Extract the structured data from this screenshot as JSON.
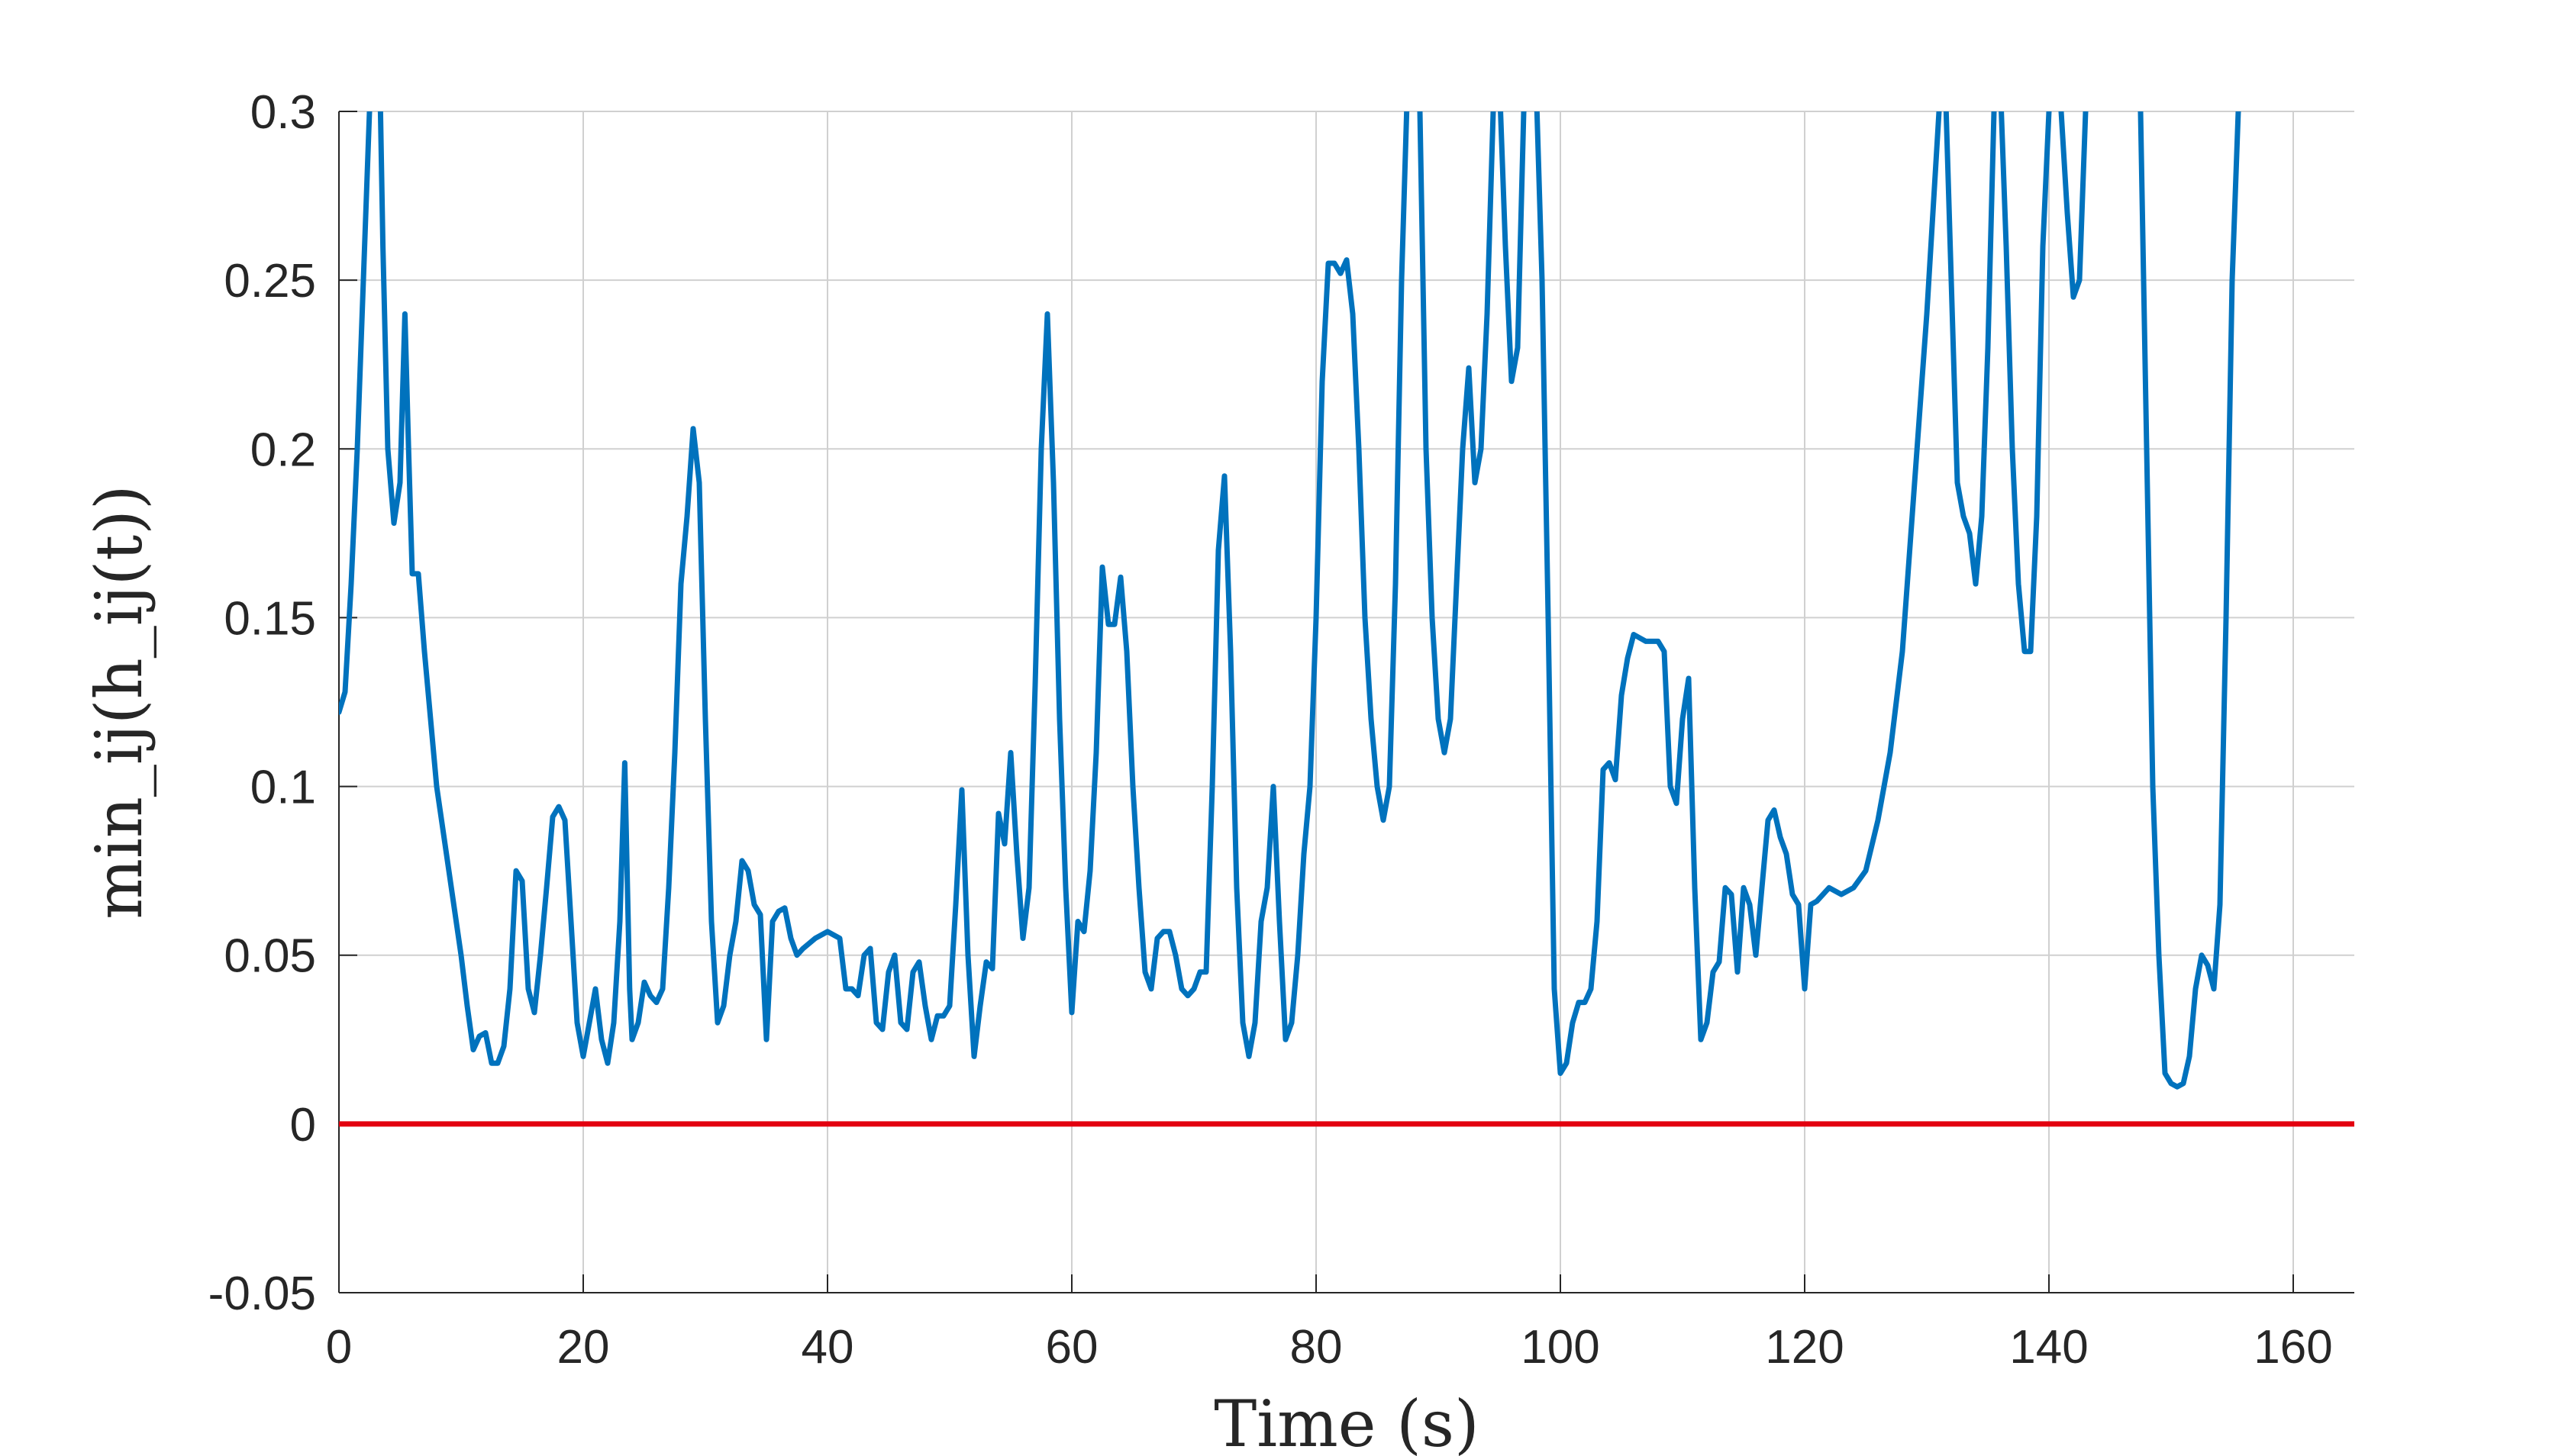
{
  "chart_data": {
    "type": "line",
    "title": "",
    "xlabel": "Time (s)",
    "ylabel": "min_ij(h_ij(t))",
    "xlim": [
      0,
      165
    ],
    "ylim": [
      -0.05,
      0.3
    ],
    "x_ticks": [
      0,
      20,
      40,
      60,
      80,
      100,
      120,
      140,
      160
    ],
    "x_tick_labels": [
      "0",
      "20",
      "40",
      "60",
      "80",
      "100",
      "120",
      "140",
      "160"
    ],
    "y_ticks": [
      -0.05,
      0,
      0.05,
      0.1,
      0.15,
      0.2,
      0.25,
      0.3
    ],
    "y_tick_labels": [
      "-0.05",
      "0",
      "0.05",
      "0.1",
      "0.15",
      "0.2",
      "0.25",
      "0.3"
    ],
    "grid": true,
    "series": [
      {
        "color": "#0072BD",
        "points": [
          [
            0,
            0.122
          ],
          [
            0.5,
            0.128
          ],
          [
            1,
            0.16
          ],
          [
            1.5,
            0.2
          ],
          [
            2,
            0.25
          ],
          [
            2.5,
            0.3
          ],
          [
            3,
            0.31
          ],
          [
            3.4,
            0.3
          ],
          [
            3.6,
            0.26
          ],
          [
            4,
            0.2
          ],
          [
            4.5,
            0.178
          ],
          [
            5,
            0.19
          ],
          [
            5.4,
            0.24
          ],
          [
            5.7,
            0.2
          ],
          [
            6,
            0.163
          ],
          [
            6.5,
            0.163
          ],
          [
            7,
            0.14
          ],
          [
            8,
            0.1
          ],
          [
            9,
            0.075
          ],
          [
            10,
            0.05
          ],
          [
            10.5,
            0.035
          ],
          [
            11,
            0.022
          ],
          [
            11.5,
            0.026
          ],
          [
            12,
            0.027
          ],
          [
            12.5,
            0.018
          ],
          [
            13,
            0.018
          ],
          [
            13.5,
            0.023
          ],
          [
            14,
            0.04
          ],
          [
            14.5,
            0.075
          ],
          [
            15,
            0.072
          ],
          [
            15.5,
            0.04
          ],
          [
            16,
            0.033
          ],
          [
            16.5,
            0.05
          ],
          [
            17,
            0.07
          ],
          [
            17.5,
            0.091
          ],
          [
            18,
            0.094
          ],
          [
            18.5,
            0.09
          ],
          [
            19,
            0.06
          ],
          [
            19.5,
            0.03
          ],
          [
            20,
            0.02
          ],
          [
            20.5,
            0.03
          ],
          [
            21,
            0.04
          ],
          [
            21.5,
            0.025
          ],
          [
            22,
            0.018
          ],
          [
            22.5,
            0.03
          ],
          [
            23,
            0.06
          ],
          [
            23.4,
            0.107
          ],
          [
            23.8,
            0.04
          ],
          [
            24,
            0.025
          ],
          [
            24.5,
            0.03
          ],
          [
            25,
            0.042
          ],
          [
            25.5,
            0.038
          ],
          [
            26,
            0.036
          ],
          [
            26.5,
            0.04
          ],
          [
            27,
            0.07
          ],
          [
            27.5,
            0.11
          ],
          [
            28,
            0.16
          ],
          [
            28.5,
            0.18
          ],
          [
            29,
            0.206
          ],
          [
            29.5,
            0.19
          ],
          [
            30,
            0.12
          ],
          [
            30.5,
            0.06
          ],
          [
            31,
            0.03
          ],
          [
            31.5,
            0.035
          ],
          [
            32,
            0.05
          ],
          [
            32.5,
            0.06
          ],
          [
            33,
            0.078
          ],
          [
            33.5,
            0.075
          ],
          [
            34,
            0.065
          ],
          [
            34.5,
            0.062
          ],
          [
            35,
            0.025
          ],
          [
            35.5,
            0.06
          ],
          [
            36,
            0.063
          ],
          [
            36.5,
            0.064
          ],
          [
            37,
            0.055
          ],
          [
            37.5,
            0.05
          ],
          [
            38,
            0.052
          ],
          [
            39,
            0.055
          ],
          [
            40,
            0.057
          ],
          [
            41,
            0.055
          ],
          [
            41.5,
            0.04
          ],
          [
            42,
            0.04
          ],
          [
            42.5,
            0.038
          ],
          [
            43,
            0.05
          ],
          [
            43.5,
            0.052
          ],
          [
            44,
            0.03
          ],
          [
            44.5,
            0.028
          ],
          [
            45,
            0.045
          ],
          [
            45.5,
            0.05
          ],
          [
            46,
            0.03
          ],
          [
            46.5,
            0.028
          ],
          [
            47,
            0.045
          ],
          [
            47.5,
            0.048
          ],
          [
            48,
            0.035
          ],
          [
            48.5,
            0.025
          ],
          [
            49,
            0.032
          ],
          [
            49.5,
            0.032
          ],
          [
            50,
            0.035
          ],
          [
            50.5,
            0.065
          ],
          [
            51,
            0.099
          ],
          [
            51.5,
            0.05
          ],
          [
            52,
            0.02
          ],
          [
            52.5,
            0.035
          ],
          [
            53,
            0.048
          ],
          [
            53.5,
            0.046
          ],
          [
            54,
            0.092
          ],
          [
            54.5,
            0.083
          ],
          [
            55,
            0.11
          ],
          [
            55.5,
            0.08
          ],
          [
            56,
            0.055
          ],
          [
            56.5,
            0.07
          ],
          [
            57,
            0.13
          ],
          [
            57.5,
            0.2
          ],
          [
            58,
            0.24
          ],
          [
            58.5,
            0.19
          ],
          [
            59,
            0.12
          ],
          [
            59.5,
            0.07
          ],
          [
            60,
            0.033
          ],
          [
            60.5,
            0.06
          ],
          [
            61,
            0.057
          ],
          [
            61.5,
            0.075
          ],
          [
            62,
            0.11
          ],
          [
            62.5,
            0.165
          ],
          [
            63,
            0.148
          ],
          [
            63.5,
            0.148
          ],
          [
            64,
            0.162
          ],
          [
            64.5,
            0.14
          ],
          [
            65,
            0.1
          ],
          [
            65.5,
            0.07
          ],
          [
            66,
            0.045
          ],
          [
            66.5,
            0.04
          ],
          [
            67,
            0.055
          ],
          [
            67.5,
            0.057
          ],
          [
            68,
            0.057
          ],
          [
            68.5,
            0.05
          ],
          [
            69,
            0.04
          ],
          [
            69.5,
            0.038
          ],
          [
            70,
            0.04
          ],
          [
            70.5,
            0.045
          ],
          [
            71,
            0.045
          ],
          [
            71.5,
            0.1
          ],
          [
            72,
            0.17
          ],
          [
            72.5,
            0.192
          ],
          [
            73,
            0.14
          ],
          [
            73.5,
            0.07
          ],
          [
            74,
            0.03
          ],
          [
            74.5,
            0.02
          ],
          [
            75,
            0.03
          ],
          [
            75.5,
            0.06
          ],
          [
            76,
            0.07
          ],
          [
            76.5,
            0.1
          ],
          [
            77,
            0.06
          ],
          [
            77.5,
            0.025
          ],
          [
            78,
            0.03
          ],
          [
            78.5,
            0.05
          ],
          [
            79,
            0.08
          ],
          [
            79.5,
            0.1
          ],
          [
            80,
            0.15
          ],
          [
            80.5,
            0.22
          ],
          [
            81,
            0.255
          ],
          [
            81.5,
            0.255
          ],
          [
            82,
            0.252
          ],
          [
            82.5,
            0.256
          ],
          [
            83,
            0.24
          ],
          [
            83.5,
            0.2
          ],
          [
            84,
            0.15
          ],
          [
            84.5,
            0.12
          ],
          [
            85,
            0.1
          ],
          [
            85.5,
            0.09
          ],
          [
            86,
            0.1
          ],
          [
            86.5,
            0.16
          ],
          [
            87,
            0.25
          ],
          [
            87.5,
            0.31
          ],
          [
            88,
            0.31
          ],
          [
            88.5,
            0.3
          ],
          [
            89,
            0.2
          ],
          [
            89.5,
            0.15
          ],
          [
            90,
            0.12
          ],
          [
            90.5,
            0.11
          ],
          [
            91,
            0.12
          ],
          [
            91.5,
            0.16
          ],
          [
            92,
            0.2
          ],
          [
            92.5,
            0.224
          ],
          [
            93,
            0.19
          ],
          [
            93.5,
            0.2
          ],
          [
            94,
            0.24
          ],
          [
            94.5,
            0.3
          ],
          [
            95,
            0.31
          ],
          [
            95.5,
            0.26
          ],
          [
            96,
            0.22
          ],
          [
            96.5,
            0.23
          ],
          [
            97,
            0.3
          ],
          [
            98,
            0.31
          ],
          [
            98.5,
            0.25
          ],
          [
            99,
            0.15
          ],
          [
            99.5,
            0.04
          ],
          [
            100,
            0.015
          ],
          [
            100.5,
            0.018
          ],
          [
            101,
            0.03
          ],
          [
            101.5,
            0.036
          ],
          [
            102,
            0.036
          ],
          [
            102.5,
            0.04
          ],
          [
            103,
            0.06
          ],
          [
            103.5,
            0.105
          ],
          [
            104,
            0.107
          ],
          [
            104.5,
            0.102
          ],
          [
            105,
            0.127
          ],
          [
            105.5,
            0.138
          ],
          [
            106,
            0.145
          ],
          [
            106.5,
            0.144
          ],
          [
            107,
            0.143
          ],
          [
            108,
            0.143
          ],
          [
            108.5,
            0.14
          ],
          [
            109,
            0.1
          ],
          [
            109.5,
            0.095
          ],
          [
            110,
            0.12
          ],
          [
            110.5,
            0.132
          ],
          [
            111,
            0.07
          ],
          [
            111.5,
            0.025
          ],
          [
            112,
            0.03
          ],
          [
            112.5,
            0.045
          ],
          [
            113,
            0.048
          ],
          [
            113.5,
            0.07
          ],
          [
            114,
            0.068
          ],
          [
            114.5,
            0.045
          ],
          [
            115,
            0.07
          ],
          [
            115.5,
            0.065
          ],
          [
            116,
            0.05
          ],
          [
            116.5,
            0.07
          ],
          [
            117,
            0.09
          ],
          [
            117.5,
            0.093
          ],
          [
            118,
            0.085
          ],
          [
            118.5,
            0.08
          ],
          [
            119,
            0.068
          ],
          [
            119.5,
            0.065
          ],
          [
            120,
            0.04
          ],
          [
            120.5,
            0.065
          ],
          [
            121,
            0.066
          ],
          [
            122,
            0.07
          ],
          [
            123,
            0.068
          ],
          [
            124,
            0.07
          ],
          [
            125,
            0.075
          ],
          [
            126,
            0.09
          ],
          [
            127,
            0.11
          ],
          [
            128,
            0.14
          ],
          [
            129,
            0.19
          ],
          [
            130,
            0.24
          ],
          [
            131,
            0.3
          ],
          [
            131.5,
            0.31
          ],
          [
            132,
            0.25
          ],
          [
            132.5,
            0.19
          ],
          [
            133,
            0.18
          ],
          [
            133.5,
            0.175
          ],
          [
            134,
            0.16
          ],
          [
            134.5,
            0.18
          ],
          [
            135,
            0.23
          ],
          [
            135.5,
            0.3
          ],
          [
            136,
            0.31
          ],
          [
            136.5,
            0.26
          ],
          [
            137,
            0.2
          ],
          [
            137.5,
            0.16
          ],
          [
            138,
            0.14
          ],
          [
            138.5,
            0.14
          ],
          [
            139,
            0.18
          ],
          [
            139.5,
            0.26
          ],
          [
            140,
            0.3
          ],
          [
            140.5,
            0.31
          ],
          [
            141,
            0.3
          ],
          [
            141.5,
            0.27
          ],
          [
            142,
            0.245
          ],
          [
            142.5,
            0.25
          ],
          [
            143,
            0.3
          ],
          [
            143.5,
            0.31
          ],
          [
            147,
            0.31
          ],
          [
            147.5,
            0.3
          ],
          [
            148,
            0.2
          ],
          [
            148.5,
            0.1
          ],
          [
            149,
            0.05
          ],
          [
            149.5,
            0.015
          ],
          [
            150,
            0.012
          ],
          [
            150.5,
            0.011
          ],
          [
            151,
            0.012
          ],
          [
            151.5,
            0.02
          ],
          [
            152,
            0.04
          ],
          [
            152.5,
            0.05
          ],
          [
            153,
            0.047
          ],
          [
            153.5,
            0.04
          ],
          [
            154,
            0.065
          ],
          [
            154.5,
            0.15
          ],
          [
            155,
            0.25
          ],
          [
            155.5,
            0.3
          ],
          [
            156,
            0.31
          ]
        ]
      },
      {
        "color": "#E3000F",
        "points": [
          [
            0,
            0
          ],
          [
            165,
            0
          ]
        ]
      }
    ]
  }
}
